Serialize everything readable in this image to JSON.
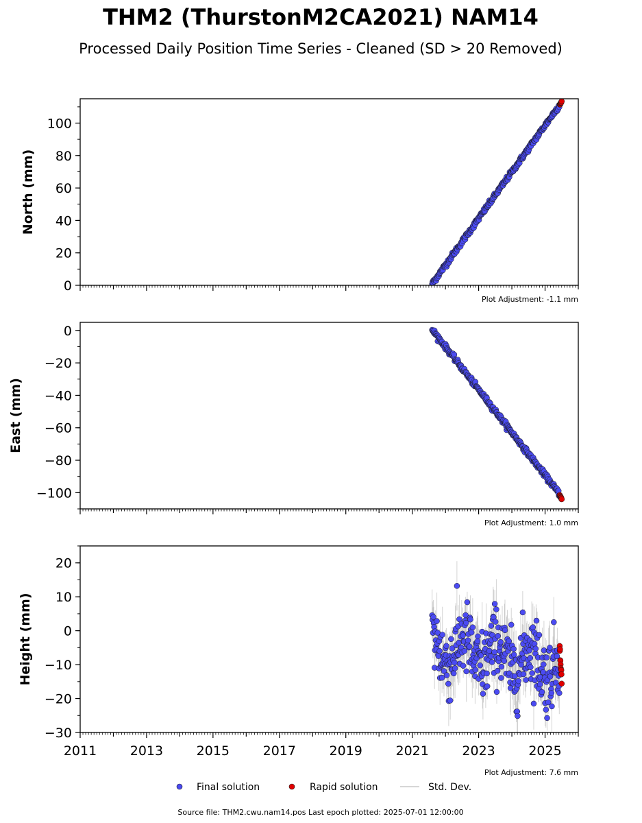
{
  "title": "THM2 (ThurstonM2CA2021) NAM14",
  "subtitle": "Processed Daily Position Time Series - Cleaned (SD > 20 Removed)",
  "footer": "Source file: THM2.cwu.nam14.pos  Last epoch plotted: 2025-07-01 12:00:00",
  "legend": {
    "final": "Final solution",
    "rapid": "Rapid solution",
    "std": "Std. Dev."
  },
  "colors": {
    "final": "#4b4bf2",
    "rapid": "#e00000",
    "std": "#b0b0b0",
    "edge": "#1a1a1a"
  },
  "chart_data": [
    {
      "type": "scatter",
      "ylabel": "North (mm)",
      "adjustment": "Plot Adjustment: -1.1 mm",
      "xlim": [
        2011,
        2026
      ],
      "ylim": [
        0,
        115
      ],
      "yticks": [
        "0",
        "20",
        "40",
        "60",
        "80",
        "100"
      ],
      "ytick_values": [
        0,
        20,
        40,
        60,
        80,
        100
      ],
      "x_start": 2021.6,
      "x_end": 2025.5,
      "y_start": 1.0,
      "y_end": 113.0,
      "scatter_sd": 0.8,
      "rapid_start": 2025.44,
      "rapid_y": [
        111.5,
        113.0
      ]
    },
    {
      "type": "scatter",
      "ylabel": "East (mm)",
      "adjustment": "Plot Adjustment: 1.0 mm",
      "xlim": [
        2011,
        2026
      ],
      "ylim": [
        -110,
        5
      ],
      "yticks": [
        "0",
        "−20",
        "−40",
        "−60",
        "−80",
        "−100"
      ],
      "ytick_values": [
        0,
        -20,
        -40,
        -60,
        -80,
        -100
      ],
      "x_start": 2021.6,
      "x_end": 2025.5,
      "y_start": 0.5,
      "y_end": -102.5,
      "scatter_sd": 0.8,
      "rapid_start": 2025.44,
      "rapid_y": [
        -101.5,
        -104.0
      ]
    },
    {
      "type": "scatter",
      "ylabel": "Height (mm)",
      "adjustment": "Plot Adjustment: 7.6 mm",
      "xlim": [
        2011,
        2026
      ],
      "ylim": [
        -30,
        25
      ],
      "yticks": [
        "20",
        "10",
        "0",
        "−10",
        "−20",
        "−30"
      ],
      "ytick_values": [
        20,
        10,
        0,
        -10,
        -20,
        -30
      ],
      "x_start": 2021.6,
      "x_end": 2025.5,
      "y_start": -5.0,
      "y_end": -10.0,
      "scatter_sd": 5.5,
      "rapid_start": 2025.44,
      "rapid_y": [
        -5.5,
        -16.0
      ],
      "xticks": [
        "2011",
        "2013",
        "2015",
        "2017",
        "2019",
        "2021",
        "2023",
        "2025"
      ],
      "xtick_values": [
        2011,
        2013,
        2015,
        2017,
        2019,
        2021,
        2023,
        2025
      ]
    }
  ]
}
